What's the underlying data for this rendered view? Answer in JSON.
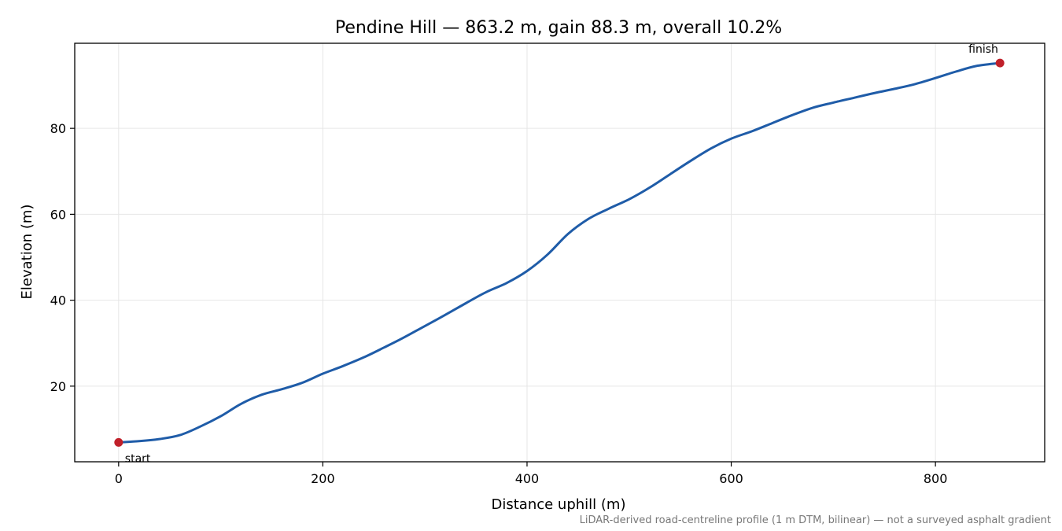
{
  "chart_data": {
    "type": "line",
    "title": "Pendine Hill — 863.2 m, gain 88.3 m, overall 10.2%",
    "xlabel": "Distance uphill (m)",
    "ylabel": "Elevation (m)",
    "caption": "LiDAR-derived road-centreline profile (1 m DTM, bilinear) — not a surveyed asphalt gradient",
    "xlim": [
      -43,
      907
    ],
    "ylim": [
      2.4,
      99.8
    ],
    "xticks": [
      0,
      200,
      400,
      600,
      800
    ],
    "yticks": [
      20,
      40,
      60,
      80
    ],
    "grid": true,
    "colors": {
      "line": "#1f5ca8",
      "marker": "#c0202a",
      "grid": "#e6e6e6",
      "caption": "#777777"
    },
    "series": [
      {
        "x": [
          0,
          20,
          40,
          60,
          80,
          100,
          120,
          140,
          160,
          180,
          200,
          220,
          240,
          260,
          280,
          300,
          320,
          340,
          360,
          380,
          400,
          420,
          440,
          460,
          480,
          500,
          520,
          540,
          560,
          580,
          600,
          620,
          640,
          660,
          680,
          700,
          720,
          740,
          760,
          780,
          800,
          820,
          840,
          863.2
        ],
        "y": [
          6.9,
          7.2,
          7.7,
          8.6,
          10.6,
          13.0,
          15.9,
          18.0,
          19.3,
          20.8,
          22.9,
          24.7,
          26.7,
          29.0,
          31.4,
          34.0,
          36.6,
          39.3,
          41.9,
          44.0,
          46.8,
          50.6,
          55.4,
          58.9,
          61.3,
          63.5,
          66.2,
          69.3,
          72.4,
          75.3,
          77.6,
          79.3,
          81.2,
          83.1,
          84.8,
          86.0,
          87.1,
          88.2,
          89.2,
          90.3,
          91.7,
          93.2,
          94.5,
          95.2
        ]
      }
    ],
    "annotations": [
      {
        "label": "start",
        "x": 0,
        "y": 6.9
      },
      {
        "label": "finish",
        "x": 863.2,
        "y": 95.2
      }
    ]
  }
}
